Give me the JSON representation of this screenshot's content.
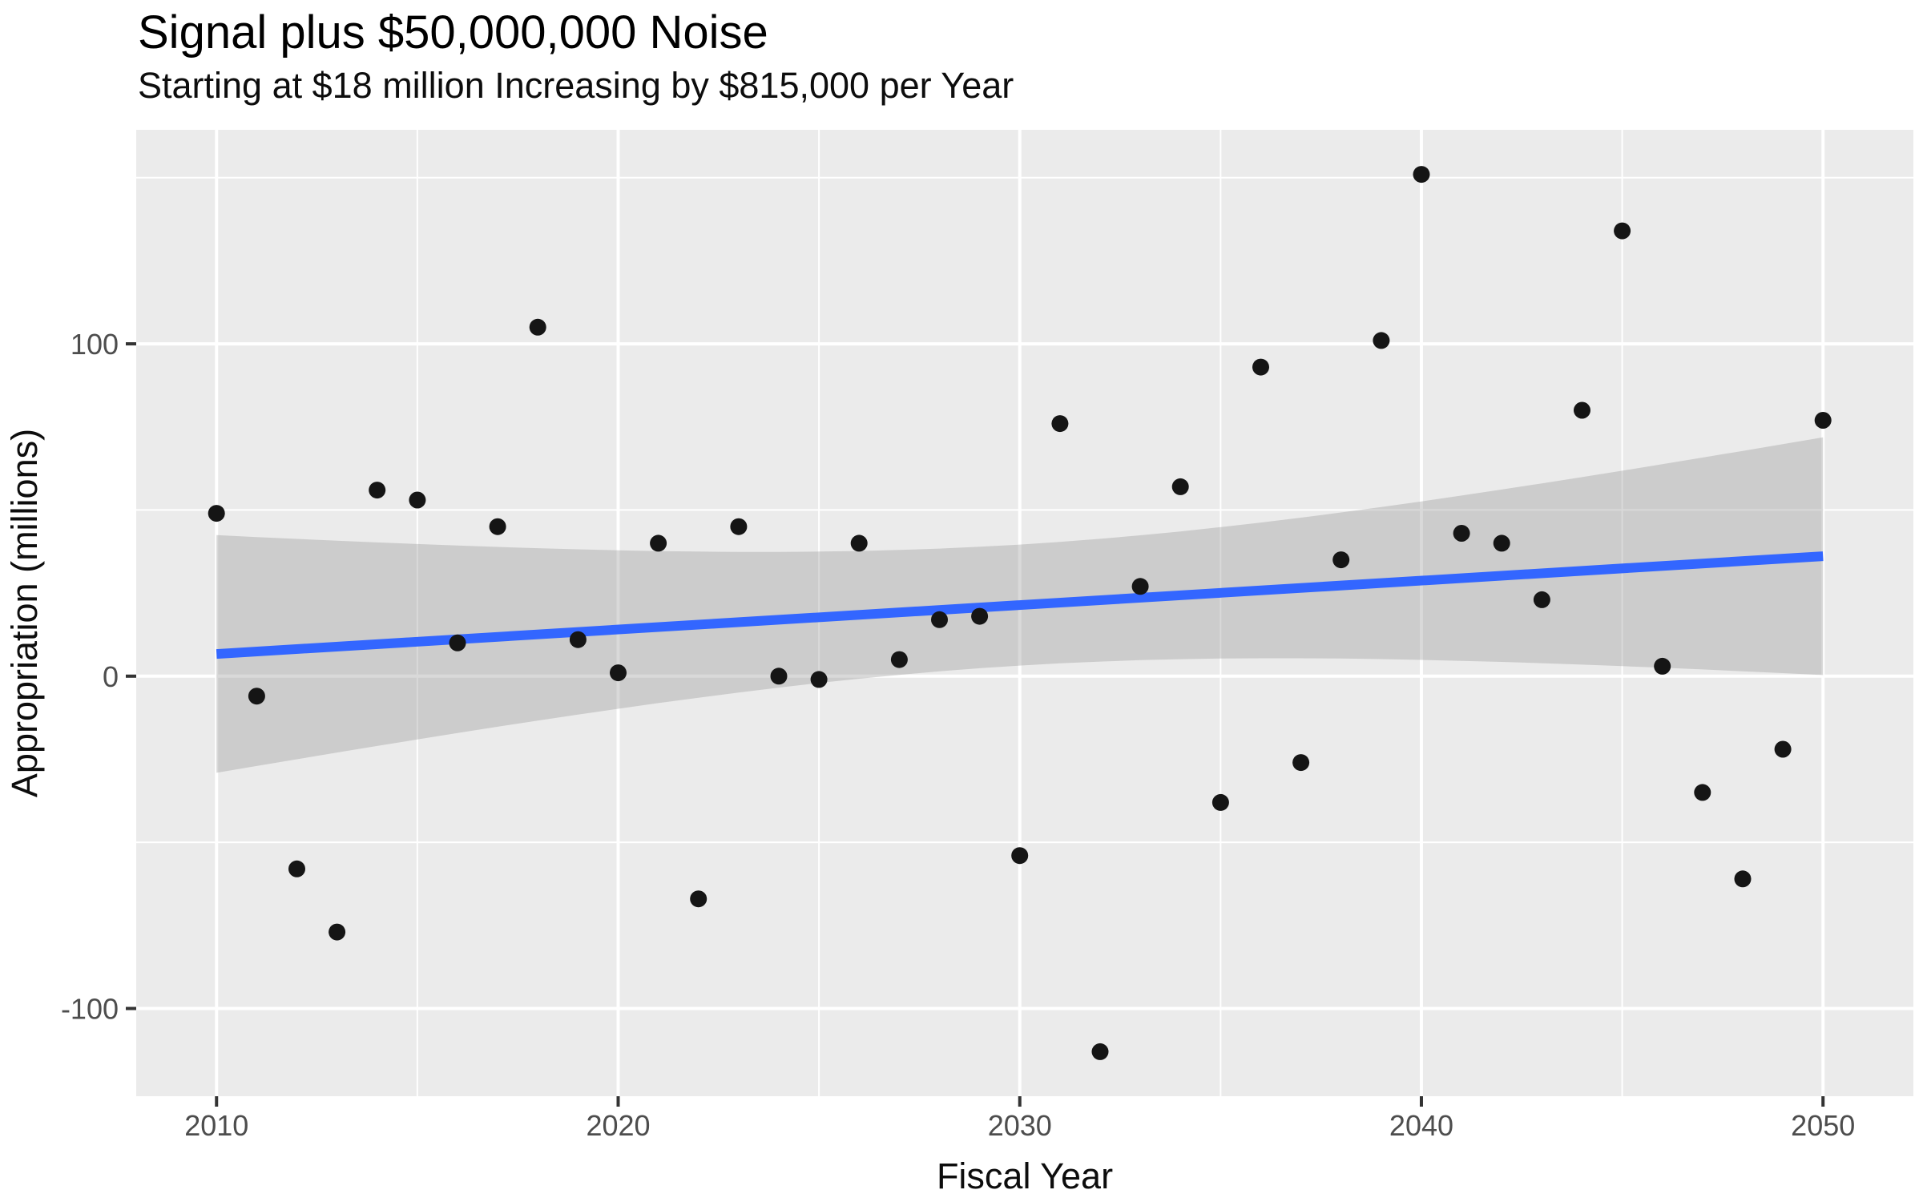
{
  "header": {
    "title": "Signal plus $50,000,000 Noise",
    "subtitle": "Starting at $18 million Increasing by $815,000 per Year"
  },
  "chart_data": {
    "type": "scatter",
    "title": "Signal plus $50,000,000 Noise",
    "subtitle": "Starting at $18 million Increasing by $815,000 per Year",
    "xlabel": "Fiscal Year",
    "ylabel": "Appropriation (millions)",
    "x": [
      2010,
      2011,
      2012,
      2013,
      2014,
      2015,
      2016,
      2017,
      2018,
      2019,
      2020,
      2021,
      2022,
      2023,
      2024,
      2025,
      2026,
      2027,
      2028,
      2029,
      2030,
      2031,
      2032,
      2033,
      2034,
      2035,
      2036,
      2037,
      2038,
      2039,
      2040,
      2041,
      2042,
      2043,
      2044,
      2045,
      2046,
      2047,
      2048,
      2049,
      2050
    ],
    "y": [
      49,
      -6,
      -58,
      -77,
      56,
      53,
      10,
      45,
      105,
      11,
      1,
      40,
      -67,
      45,
      0,
      -1,
      40,
      5,
      17,
      18,
      -54,
      76,
      -113,
      27,
      57,
      -38,
      93,
      -26,
      35,
      101,
      151,
      43,
      40,
      23,
      80,
      134,
      3,
      -35,
      -61,
      -22,
      77
    ],
    "xlim": [
      2008,
      2052.25
    ],
    "ylim": [
      -126.4,
      164.4
    ],
    "x_ticks": [
      2010,
      2020,
      2030,
      2040,
      2050
    ],
    "x_minor_ticks": [
      2015,
      2025,
      2035,
      2045
    ],
    "y_ticks": [
      -100,
      0,
      100
    ],
    "y_minor_ticks": [
      -50,
      50,
      150
    ],
    "grid": "on",
    "legend": "none",
    "smooth": {
      "method": "lm",
      "ci_level": 0.95,
      "t_multiplier": 2.023,
      "x_range": [
        2010,
        2050
      ]
    },
    "style": {
      "panel_bg": "#EBEBEB",
      "grid_color": "#FFFFFF",
      "point_color": "#151515",
      "line_color": "#3366FF",
      "ribbon_color": "#9C9C9C",
      "ribbon_opacity": 0.38,
      "tick_label_color": "#4D4D4D",
      "tick_mark_color": "#333333",
      "text_color": "#000000"
    }
  }
}
